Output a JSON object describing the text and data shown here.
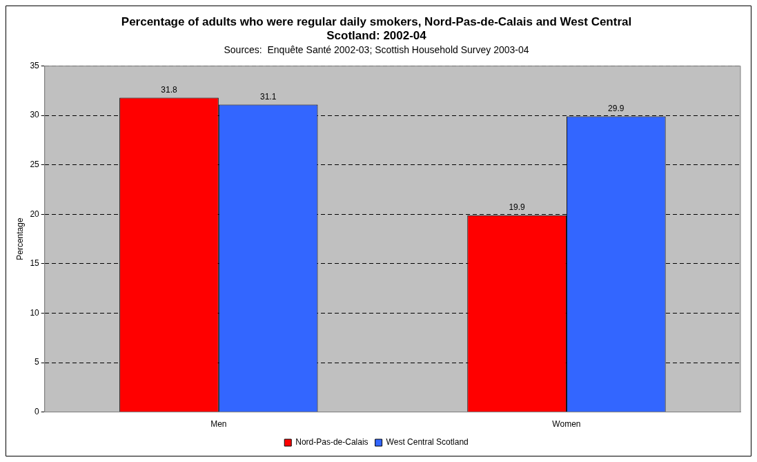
{
  "chart_data": {
    "type": "bar",
    "title": "Percentage of adults who were regular daily smokers, Nord-Pas-de-Calais and West Central Scotland: 2002-04",
    "subtitle": "Sources:  Enquête Santé 2002-03; Scottish Household Survey 2003-04",
    "ylabel": "Percentage",
    "categories": [
      "Men",
      "Women"
    ],
    "series": [
      {
        "name": "Nord-Pas-de-Calais",
        "color": "#ff0000",
        "values": [
          31.8,
          19.9
        ]
      },
      {
        "name": "West Central Scotland",
        "color": "#3366ff",
        "values": [
          31.1,
          29.9
        ]
      }
    ],
    "ylim": [
      0,
      35
    ],
    "yticks": [
      0,
      5,
      10,
      15,
      20,
      25,
      30,
      35
    ],
    "grid": "y",
    "legend": "bottom",
    "data_labels": true
  }
}
